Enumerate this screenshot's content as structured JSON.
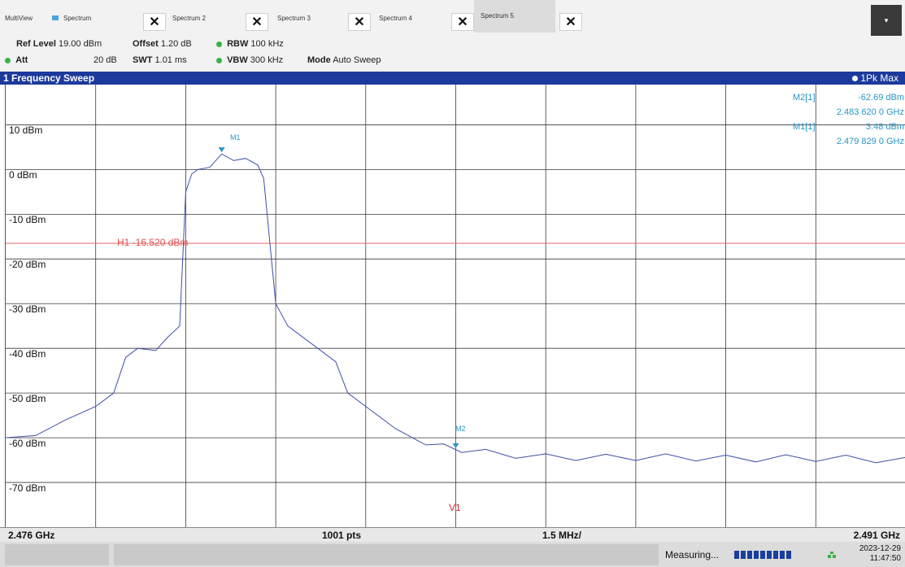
{
  "tabs": {
    "multiview": "MultiView",
    "items": [
      "Spectrum",
      "Spectrum 2",
      "Spectrum 3",
      "Spectrum 4",
      "Spectrum 5"
    ],
    "close_glyph": "✕",
    "menu_glyph": "▾"
  },
  "params": {
    "ref_level_label": "Ref Level",
    "ref_level_value": "19.00 dBm",
    "offset_label": "Offset",
    "offset_value": "1.20 dB",
    "rbw_label": "RBW",
    "rbw_value": "100 kHz",
    "att_label": "Att",
    "att_value": "20 dB",
    "swt_label": "SWT",
    "swt_value": "1.01 ms",
    "vbw_label": "VBW",
    "vbw_value": "300 kHz",
    "mode_label": "Mode",
    "mode_value": "Auto Sweep"
  },
  "window": {
    "title": "1 Frequency Sweep",
    "trace": "1Pk Max"
  },
  "markers": {
    "m2_label": "M2[1]",
    "m2_level": "-62.69 dBm",
    "m2_freq": "2.483 620 0 GHz",
    "m1_label": "M1[1]",
    "m1_level": "3.48 dBm",
    "m1_freq": "2.479 829 0 GHz",
    "m1_tag": "M1",
    "m2_tag": "M2",
    "h1_label": "H1 -16.520 dBm",
    "v1_label": "V1"
  },
  "chart_data": {
    "type": "line",
    "y_ticks": [
      "10 dBm",
      "0 dBm",
      "-10 dBm",
      "-20 dBm",
      "-30 dBm",
      "-40 dBm",
      "-50 dBm",
      "-60 dBm",
      "-70 dBm"
    ],
    "y_tick_values": [
      10,
      0,
      -10,
      -20,
      -30,
      -40,
      -50,
      -60,
      -70
    ],
    "ylim": [
      -80,
      19
    ],
    "xlim": [
      2.476,
      2.491
    ],
    "x_unit": "GHz",
    "h1_level": -16.52,
    "v1_freq": 2.4835,
    "series": [
      {
        "x": [
          2.476,
          2.4765,
          2.477,
          2.4775,
          2.4778,
          2.478,
          2.4782,
          2.4785,
          2.4787,
          2.4789,
          2.479,
          2.4791,
          2.4792,
          2.4794,
          2.4796,
          2.4798,
          2.48,
          2.4802,
          2.4803,
          2.4805,
          2.4807,
          2.481,
          2.4812,
          2.4815,
          2.4817,
          2.482,
          2.4825,
          2.483,
          2.4833,
          2.4836,
          2.484,
          2.4845,
          2.485,
          2.4855,
          2.486,
          2.4865,
          2.487,
          2.4875,
          2.488,
          2.4885,
          2.489,
          2.4895,
          2.49,
          2.4905,
          2.491
        ],
        "y": [
          -60,
          -59.5,
          -56,
          -53,
          -50,
          -42,
          -40,
          -40.5,
          -37.5,
          -35,
          -5,
          -1,
          0,
          0.5,
          3.5,
          2,
          2.5,
          1,
          -2,
          -30,
          -35,
          -38,
          -40,
          -43,
          -50,
          -53,
          -58,
          -61,
          -62,
          -62.7,
          -63.2,
          -64,
          -64.2,
          -64.5,
          -64.3,
          -64.5,
          -64.2,
          -64.6,
          -64.5,
          -64.8,
          -64.4,
          -64.7,
          -64.5,
          -65,
          -65
        ]
      }
    ],
    "x_start_label": "2.476 GHz",
    "points_label": "1001 pts",
    "span_label": "1.5 MHz/",
    "x_stop_label": "2.491 GHz",
    "colors": {
      "trace": "#3f4fa8",
      "h1": "#e56a6a",
      "marker": "#2796c6",
      "v1": "#d62f2f",
      "grid": "#3a3a3a"
    }
  },
  "status": {
    "measuring": "Measuring...",
    "date": "2023-12-29",
    "time": "11:47:50"
  }
}
